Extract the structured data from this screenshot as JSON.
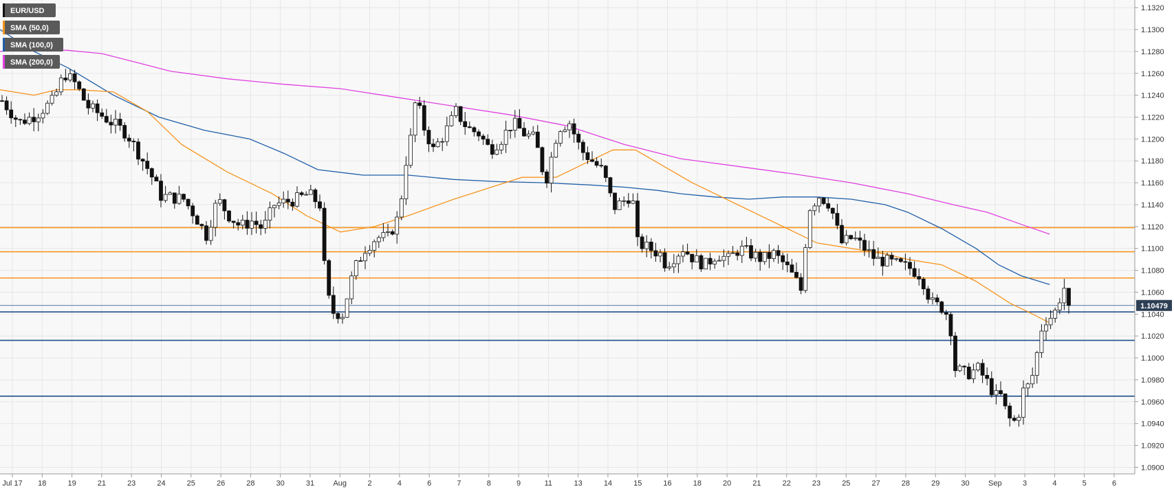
{
  "chart_data": {
    "type": "candlestick",
    "symbol": "EUR/USD",
    "legend": [
      {
        "label": "EUR/USD",
        "color": "#111111"
      },
      {
        "label": "SMA (50,0)",
        "color": "#f7941d"
      },
      {
        "label": "SMA (100,0)",
        "color": "#1f5fa8"
      },
      {
        "label": "SMA (200,0)",
        "color": "#e040e0"
      }
    ],
    "ylim": [
      1.0894,
      1.1327
    ],
    "y_ticks": [
      "1.1320",
      "1.1300",
      "1.1280",
      "1.1260",
      "1.1240",
      "1.1220",
      "1.1200",
      "1.1180",
      "1.1160",
      "1.1140",
      "1.1120",
      "1.1100",
      "1.1080",
      "1.1060",
      "1.1040",
      "1.1020",
      "1.1000",
      "1.0980",
      "1.0960",
      "1.0940",
      "1.0920",
      "1.0900"
    ],
    "x_labels": [
      "Jul 17",
      "18",
      "19",
      "21",
      "23",
      "24",
      "25",
      "26",
      "28",
      "30",
      "31",
      "Aug",
      "2",
      "4",
      "6",
      "7",
      "8",
      "9",
      "11",
      "13",
      "14",
      "15",
      "16",
      "18",
      "20",
      "21",
      "22",
      "23",
      "25",
      "27",
      "28",
      "29",
      "30",
      "Sep",
      "3",
      "4",
      "5",
      "6"
    ],
    "current_price": "1.10479",
    "resistance_levels": [
      1.1119,
      1.1097,
      1.1073
    ],
    "support_levels": [
      1.1042,
      1.1016,
      1.0965
    ],
    "level_colors": {
      "resistance": "#f7941d",
      "support": "#1f4e8c",
      "current": "#1f4e8c"
    },
    "sma50_path": [
      [
        0,
        1.1245
      ],
      [
        0.03,
        1.124
      ],
      [
        0.05,
        1.1245
      ],
      [
        0.07,
        1.1245
      ],
      [
        0.1,
        1.1243
      ],
      [
        0.13,
        1.1225
      ],
      [
        0.16,
        1.1195
      ],
      [
        0.2,
        1.117
      ],
      [
        0.24,
        1.115
      ],
      [
        0.27,
        1.113
      ],
      [
        0.3,
        1.1115
      ],
      [
        0.33,
        1.112
      ],
      [
        0.36,
        1.113
      ],
      [
        0.4,
        1.1145
      ],
      [
        0.43,
        1.1155
      ],
      [
        0.46,
        1.1165
      ],
      [
        0.49,
        1.1165
      ],
      [
        0.52,
        1.118
      ],
      [
        0.54,
        1.119
      ],
      [
        0.56,
        1.119
      ],
      [
        0.58,
        1.1178
      ],
      [
        0.61,
        1.116
      ],
      [
        0.64,
        1.1145
      ],
      [
        0.67,
        1.113
      ],
      [
        0.7,
        1.1115
      ],
      [
        0.72,
        1.1105
      ],
      [
        0.75,
        1.11
      ],
      [
        0.78,
        1.1095
      ],
      [
        0.8,
        1.109
      ],
      [
        0.83,
        1.1085
      ],
      [
        0.86,
        1.107
      ],
      [
        0.89,
        1.105
      ],
      [
        0.91,
        1.104
      ],
      [
        0.925,
        1.1032
      ]
    ],
    "sma100_path": [
      [
        0,
        1.13
      ],
      [
        0.03,
        1.128
      ],
      [
        0.06,
        1.1265
      ],
      [
        0.1,
        1.124
      ],
      [
        0.14,
        1.122
      ],
      [
        0.18,
        1.1208
      ],
      [
        0.22,
        1.12
      ],
      [
        0.25,
        1.1187
      ],
      [
        0.28,
        1.1172
      ],
      [
        0.32,
        1.1167
      ],
      [
        0.36,
        1.1167
      ],
      [
        0.4,
        1.1163
      ],
      [
        0.44,
        1.1161
      ],
      [
        0.48,
        1.116
      ],
      [
        0.52,
        1.1158
      ],
      [
        0.55,
        1.1156
      ],
      [
        0.58,
        1.1153
      ],
      [
        0.6,
        1.115
      ],
      [
        0.63,
        1.1147
      ],
      [
        0.66,
        1.1145
      ],
      [
        0.69,
        1.1147
      ],
      [
        0.72,
        1.1147
      ],
      [
        0.75,
        1.1145
      ],
      [
        0.78,
        1.114
      ],
      [
        0.8,
        1.1133
      ],
      [
        0.83,
        1.1118
      ],
      [
        0.86,
        1.11
      ],
      [
        0.88,
        1.1085
      ],
      [
        0.9,
        1.1075
      ],
      [
        0.925,
        1.1067
      ]
    ],
    "sma200_path": [
      [
        0,
        1.128
      ],
      [
        0.03,
        1.1282
      ],
      [
        0.06,
        1.1281
      ],
      [
        0.09,
        1.1278
      ],
      [
        0.12,
        1.127
      ],
      [
        0.15,
        1.1262
      ],
      [
        0.2,
        1.1255
      ],
      [
        0.25,
        1.125
      ],
      [
        0.3,
        1.1246
      ],
      [
        0.35,
        1.1238
      ],
      [
        0.4,
        1.123
      ],
      [
        0.45,
        1.1222
      ],
      [
        0.5,
        1.1212
      ],
      [
        0.55,
        1.1195
      ],
      [
        0.6,
        1.1182
      ],
      [
        0.65,
        1.1175
      ],
      [
        0.7,
        1.1168
      ],
      [
        0.75,
        1.116
      ],
      [
        0.8,
        1.115
      ],
      [
        0.84,
        1.114
      ],
      [
        0.87,
        1.1133
      ],
      [
        0.9,
        1.1122
      ],
      [
        0.925,
        1.1113
      ]
    ],
    "candle_anchors": [
      [
        0,
        1.1235
      ],
      [
        0.015,
        1.1215
      ],
      [
        0.03,
        1.1222
      ],
      [
        0.045,
        1.1235
      ],
      [
        0.055,
        1.126
      ],
      [
        0.065,
        1.125
      ],
      [
        0.075,
        1.123
      ],
      [
        0.09,
        1.122
      ],
      [
        0.11,
        1.1205
      ],
      [
        0.13,
        1.117
      ],
      [
        0.14,
        1.1148
      ],
      [
        0.16,
        1.1145
      ],
      [
        0.17,
        1.113
      ],
      [
        0.18,
        1.1112
      ],
      [
        0.19,
        1.1145
      ],
      [
        0.2,
        1.113
      ],
      [
        0.21,
        1.112
      ],
      [
        0.22,
        1.1125
      ],
      [
        0.23,
        1.1118
      ],
      [
        0.24,
        1.114
      ],
      [
        0.26,
        1.1145
      ],
      [
        0.27,
        1.115
      ],
      [
        0.28,
        1.114
      ],
      [
        0.285,
        1.107
      ],
      [
        0.29,
        1.1042
      ],
      [
        0.3,
        1.104
      ],
      [
        0.31,
        1.108
      ],
      [
        0.32,
        1.11
      ],
      [
        0.33,
        1.111
      ],
      [
        0.34,
        1.111
      ],
      [
        0.35,
        1.113
      ],
      [
        0.355,
        1.1175
      ],
      [
        0.36,
        1.12
      ],
      [
        0.365,
        1.124
      ],
      [
        0.37,
        1.1215
      ],
      [
        0.38,
        1.119
      ],
      [
        0.39,
        1.1205
      ],
      [
        0.4,
        1.1225
      ],
      [
        0.41,
        1.121
      ],
      [
        0.42,
        1.1205
      ],
      [
        0.43,
        1.119
      ],
      [
        0.44,
        1.12
      ],
      [
        0.45,
        1.1215
      ],
      [
        0.46,
        1.1205
      ],
      [
        0.47,
        1.12
      ],
      [
        0.475,
        1.1175
      ],
      [
        0.48,
        1.1165
      ],
      [
        0.49,
        1.121
      ],
      [
        0.5,
        1.1215
      ],
      [
        0.51,
        1.119
      ],
      [
        0.52,
        1.118
      ],
      [
        0.53,
        1.117
      ],
      [
        0.535,
        1.115
      ],
      [
        0.54,
        1.1138
      ],
      [
        0.55,
        1.1145
      ],
      [
        0.555,
        1.115
      ],
      [
        0.56,
        1.1105
      ],
      [
        0.57,
        1.11
      ],
      [
        0.58,
        1.1095
      ],
      [
        0.585,
        1.1085
      ],
      [
        0.59,
        1.109
      ],
      [
        0.6,
        1.11
      ],
      [
        0.61,
        1.109
      ],
      [
        0.62,
        1.1085
      ],
      [
        0.63,
        1.1095
      ],
      [
        0.64,
        1.109
      ],
      [
        0.65,
        1.11
      ],
      [
        0.66,
        1.1095
      ],
      [
        0.67,
        1.109
      ],
      [
        0.68,
        1.1095
      ],
      [
        0.69,
        1.1085
      ],
      [
        0.7,
        1.107
      ],
      [
        0.705,
        1.106
      ],
      [
        0.71,
        1.1135
      ],
      [
        0.72,
        1.1148
      ],
      [
        0.73,
        1.114
      ],
      [
        0.735,
        1.112
      ],
      [
        0.74,
        1.1105
      ],
      [
        0.75,
        1.111
      ],
      [
        0.76,
        1.11
      ],
      [
        0.77,
        1.109
      ],
      [
        0.78,
        1.1088
      ],
      [
        0.79,
        1.1085
      ],
      [
        0.8,
        1.1082
      ],
      [
        0.81,
        1.1075
      ],
      [
        0.815,
        1.106
      ],
      [
        0.82,
        1.105
      ],
      [
        0.83,
        1.1045
      ],
      [
        0.835,
        1.1035
      ],
      [
        0.84,
        1.099
      ],
      [
        0.85,
        1.0985
      ],
      [
        0.86,
        1.099
      ],
      [
        0.87,
        1.0975
      ],
      [
        0.875,
        1.0965
      ],
      [
        0.88,
        1.0965
      ],
      [
        0.885,
        1.095
      ],
      [
        0.89,
        1.094
      ],
      [
        0.895,
        1.0945
      ],
      [
        0.9,
        1.097
      ],
      [
        0.905,
        1.0975
      ],
      [
        0.91,
        1.099
      ],
      [
        0.915,
        1.1025
      ],
      [
        0.92,
        1.1035
      ],
      [
        0.925,
        1.1038
      ],
      [
        0.93,
        1.1045
      ],
      [
        0.935,
        1.1068
      ],
      [
        0.94,
        1.1048
      ]
    ]
  }
}
